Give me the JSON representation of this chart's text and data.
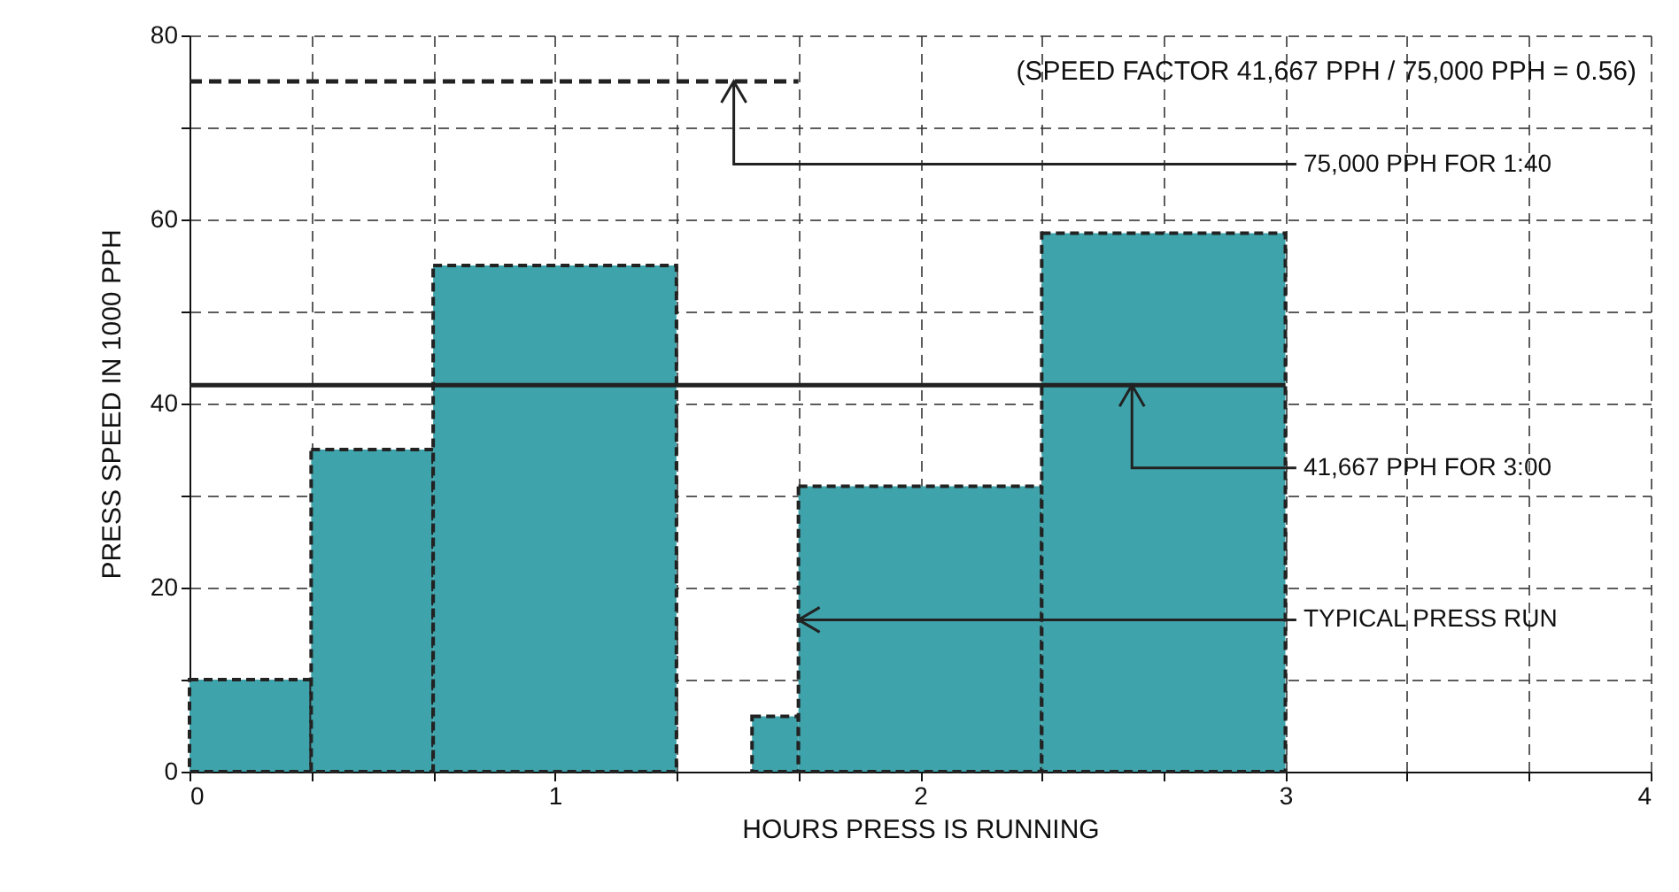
{
  "chart_data": {
    "type": "histogram",
    "xlabel": "HOURS PRESS IS RUNNING",
    "ylabel": "PRESS SPEED IN 1000 PPH",
    "xlim": [
      0,
      4
    ],
    "ylim": [
      0,
      80
    ],
    "xticks": [
      0,
      {
        "value": 0.333,
        "label": null
      },
      {
        "value": 0.667,
        "label": null
      },
      1,
      {
        "value": 1.333,
        "label": null
      },
      {
        "value": 1.667,
        "label": null
      },
      2,
      {
        "value": 2.333,
        "label": null
      },
      {
        "value": 2.667,
        "label": null
      },
      3,
      {
        "value": 3.333,
        "label": null
      },
      {
        "value": 3.667,
        "label": null
      },
      4
    ],
    "yticks": [
      0,
      {
        "value": 10,
        "label": null
      },
      20,
      {
        "value": 30,
        "label": null
      },
      40,
      {
        "value": 50,
        "label": null
      },
      60,
      {
        "value": 70,
        "label": null
      },
      80
    ],
    "grid": true,
    "series": [
      {
        "type": "histogram",
        "color": "#3fa3ab",
        "bins": [
          0,
          0.333,
          0.667,
          1.333,
          1.54,
          1.667,
          2.333,
          3
        ],
        "values": [
          10,
          35,
          55,
          0,
          6,
          31,
          58.5
        ]
      },
      {
        "type": "line",
        "color": "#222222",
        "line_style": "dashed",
        "x": [
          0,
          1.667
        ],
        "values": [
          75,
          75
        ]
      },
      {
        "type": "line",
        "color": "#222222",
        "x": [
          0,
          3
        ],
        "values": [
          42,
          42
        ]
      }
    ],
    "annotations": [
      "(SPEED FACTOR 41,667 PPH /  75,000 PPH = 0.56)",
      {
        "text": "75,000 PPH FOR 1:40",
        "x": 1.49,
        "y": 75
      },
      {
        "text": "41,667 PPH FOR 3:00",
        "x": 2.58,
        "y": 42
      },
      {
        "text": "TYPICAL PRESS RUN",
        "x": 1.667,
        "y": 16.5
      }
    ]
  }
}
